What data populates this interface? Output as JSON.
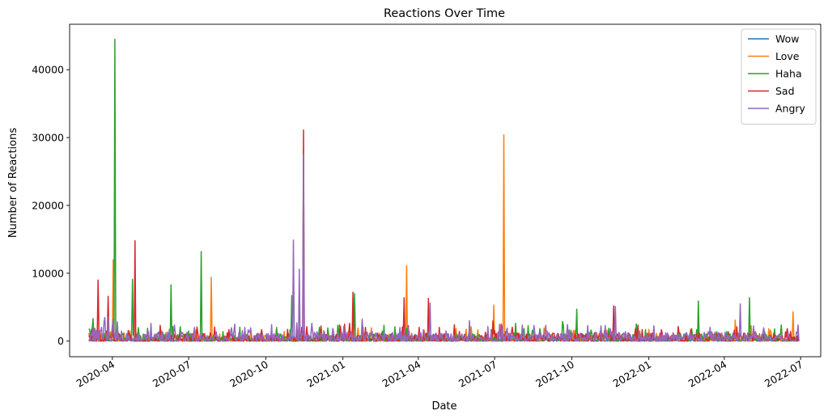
{
  "chart_data": {
    "type": "line",
    "title": "Reactions Over Time",
    "xlabel": "Date",
    "ylabel": "Number of Reactions",
    "x_range": [
      "2020-02-10",
      "2022-07-25"
    ],
    "ylim": [
      -2300,
      46700
    ],
    "x_ticks": [
      "2020-04",
      "2020-07",
      "2020-10",
      "2021-01",
      "2021-04",
      "2021-07",
      "2021-10",
      "2022-01",
      "2022-04",
      "2022-07"
    ],
    "y_ticks": [
      0,
      10000,
      20000,
      30000,
      40000
    ],
    "y_tick_labels": [
      "0",
      "10000",
      "20000",
      "30000",
      "40000"
    ],
    "grid": false,
    "legend_position": "top-right",
    "data_start": "2020-03-04",
    "data_end": "2022-06-29",
    "series": [
      {
        "name": "Wow",
        "color": "#1f77b4",
        "peaks": [
          [
            "2020-03-14",
            800
          ],
          [
            "2020-04-05",
            1200
          ],
          [
            "2020-11-15",
            1500
          ],
          [
            "2021-07-12",
            600
          ]
        ]
      },
      {
        "name": "Love",
        "color": "#ff7f0e",
        "peaks": [
          [
            "2020-04-02",
            12000
          ],
          [
            "2020-07-28",
            9400
          ],
          [
            "2021-03-18",
            11100
          ],
          [
            "2021-06-30",
            5300
          ],
          [
            "2021-07-12",
            30400
          ],
          [
            "2022-04-14",
            3100
          ],
          [
            "2022-06-22",
            4300
          ]
        ]
      },
      {
        "name": "Haha",
        "color": "#2ca02c",
        "peaks": [
          [
            "2020-04-04",
            44500
          ],
          [
            "2020-04-25",
            9100
          ],
          [
            "2020-06-10",
            8300
          ],
          [
            "2020-07-16",
            13200
          ],
          [
            "2020-11-01",
            6700
          ],
          [
            "2021-01-15",
            7000
          ],
          [
            "2021-10-07",
            4700
          ],
          [
            "2022-03-01",
            5900
          ],
          [
            "2022-05-01",
            6400
          ]
        ]
      },
      {
        "name": "Sad",
        "color": "#d62728",
        "peaks": [
          [
            "2020-03-15",
            9000
          ],
          [
            "2020-03-27",
            6600
          ],
          [
            "2020-04-28",
            14800
          ],
          [
            "2020-11-15",
            31100
          ],
          [
            "2021-01-13",
            7200
          ],
          [
            "2021-03-15",
            6400
          ],
          [
            "2021-04-13",
            6300
          ],
          [
            "2021-11-20",
            5200
          ]
        ]
      },
      {
        "name": "Angry",
        "color": "#9467bd",
        "peaks": [
          [
            "2020-11-03",
            14900
          ],
          [
            "2020-11-10",
            10600
          ],
          [
            "2020-11-15",
            27400
          ],
          [
            "2021-04-15",
            5600
          ],
          [
            "2021-11-22",
            5100
          ],
          [
            "2022-04-20",
            5500
          ]
        ]
      }
    ]
  }
}
